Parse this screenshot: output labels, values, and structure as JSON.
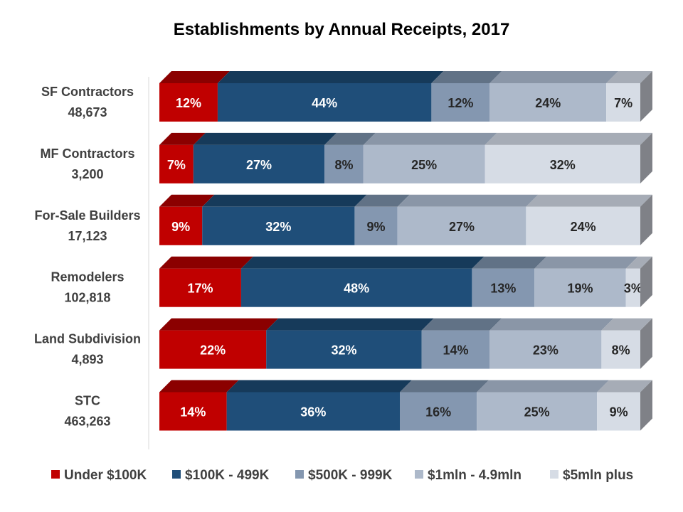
{
  "chart_data": {
    "type": "bar",
    "orientation": "horizontal",
    "stacked": true,
    "percent": true,
    "style": "3d",
    "title": "Establishments by Annual Receipts, 2017",
    "xlabel": "",
    "ylabel": "",
    "xlim": [
      0,
      100
    ],
    "grid": false,
    "legend_position": "bottom",
    "categories": [
      {
        "name": "SF Contractors",
        "count": "48,673"
      },
      {
        "name": "MF Contractors",
        "count": "3,200"
      },
      {
        "name": "For-Sale Builders",
        "count": "17,123"
      },
      {
        "name": "Remodelers",
        "count": "102,818"
      },
      {
        "name": "Land Subdivision",
        "count": "4,893"
      },
      {
        "name": "STC",
        "count": "463,263"
      }
    ],
    "series": [
      {
        "name": "Under $100K",
        "color": "#c00000",
        "top_color": "#8b0000",
        "label_color": "#ffffff",
        "values": [
          12,
          7,
          9,
          17,
          22,
          14
        ]
      },
      {
        "name": "$100K - 499K",
        "color": "#1f4e79",
        "top_color": "#163a5a",
        "label_color": "#ffffff",
        "values": [
          44,
          27,
          32,
          48,
          32,
          36
        ]
      },
      {
        "name": "$500K - 999K",
        "color": "#8497b0",
        "top_color": "#617286",
        "label_color": "#262626",
        "values": [
          12,
          8,
          9,
          13,
          14,
          16
        ]
      },
      {
        "name": "$1mln - 4.9mln",
        "color": "#adb9ca",
        "top_color": "#8a96a7",
        "label_color": "#262626",
        "values": [
          24,
          25,
          27,
          19,
          23,
          25
        ]
      },
      {
        "name": "$5mln plus",
        "color": "#d6dce5",
        "top_color": "#a6acb6",
        "label_color": "#262626",
        "values": [
          7,
          32,
          24,
          3,
          8,
          9
        ]
      }
    ],
    "side_color": "#7f8187"
  }
}
